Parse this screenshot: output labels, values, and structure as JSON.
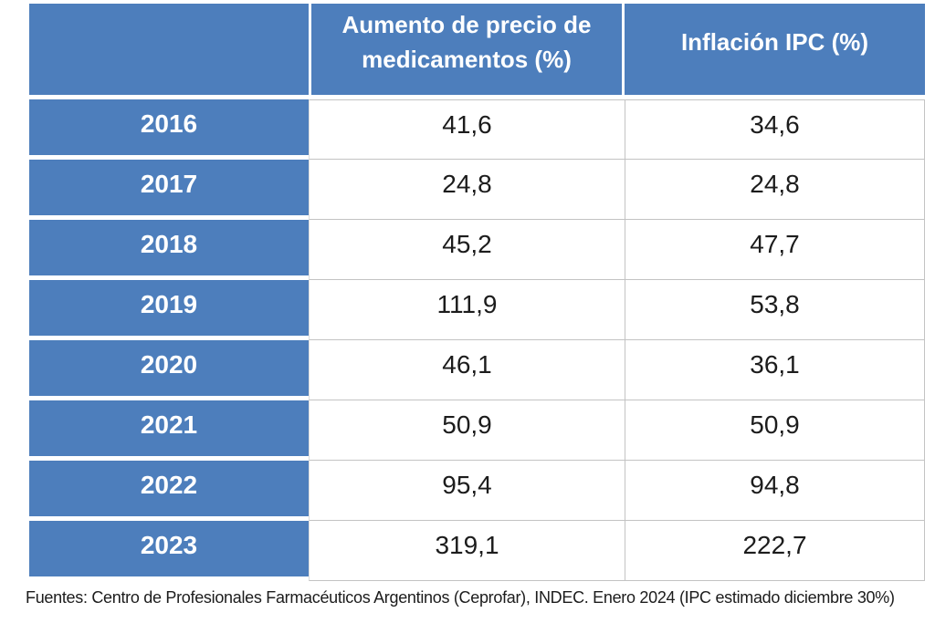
{
  "chart_data": {
    "type": "table",
    "categories": [
      "2016",
      "2017",
      "2018",
      "2019",
      "2020",
      "2021",
      "2022",
      "2023"
    ],
    "series": [
      {
        "name": "Aumento de precio de medicamentos (%)",
        "values": [
          41.6,
          24.8,
          45.2,
          111.9,
          46.1,
          50.9,
          95.4,
          319.1
        ]
      },
      {
        "name": "Inflación IPC (%)",
        "values": [
          34.6,
          24.8,
          47.7,
          53.8,
          36.1,
          50.9,
          94.8,
          222.7
        ]
      }
    ],
    "title": "",
    "note": "Fuentes: Centro de Profesionales Farmacéuticos Argentinos (Ceprofar), INDEC. Enero 2024  (IPC estimado diciembre 30%)",
    "layout": {
      "header_position": "top",
      "row_label_column": "years",
      "grid": "on",
      "decimal_separator": "comma"
    }
  },
  "table": {
    "headers": [
      "",
      "Aumento de precio de medicamentos  (%)",
      "Inflación IPC (%)"
    ],
    "rows": [
      {
        "year": "2016",
        "aumento": "41,6",
        "ipc": "34,6"
      },
      {
        "year": "2017",
        "aumento": "24,8",
        "ipc": "24,8"
      },
      {
        "year": "2018",
        "aumento": "45,2",
        "ipc": "47,7"
      },
      {
        "year": "2019",
        "aumento": "111,9",
        "ipc": "53,8"
      },
      {
        "year": "2020",
        "aumento": "46,1",
        "ipc": "36,1"
      },
      {
        "year": "2021",
        "aumento": "50,9",
        "ipc": "50,9"
      },
      {
        "year": "2022",
        "aumento": "95,4",
        "ipc": "94,8"
      },
      {
        "year": "2023",
        "aumento": "319,1",
        "ipc": "222,7"
      }
    ]
  },
  "footer": "Fuentes: Centro de Profesionales Farmacéuticos Argentinos (Ceprofar), INDEC. Enero 2024  (IPC estimado diciembre 30%)",
  "colors": {
    "header_blue": "#4d7ebc",
    "header_text": "#ffffff",
    "border_gray": "#c3c3c3",
    "cell_text": "#1c1c1c",
    "background": "#ffffff"
  }
}
